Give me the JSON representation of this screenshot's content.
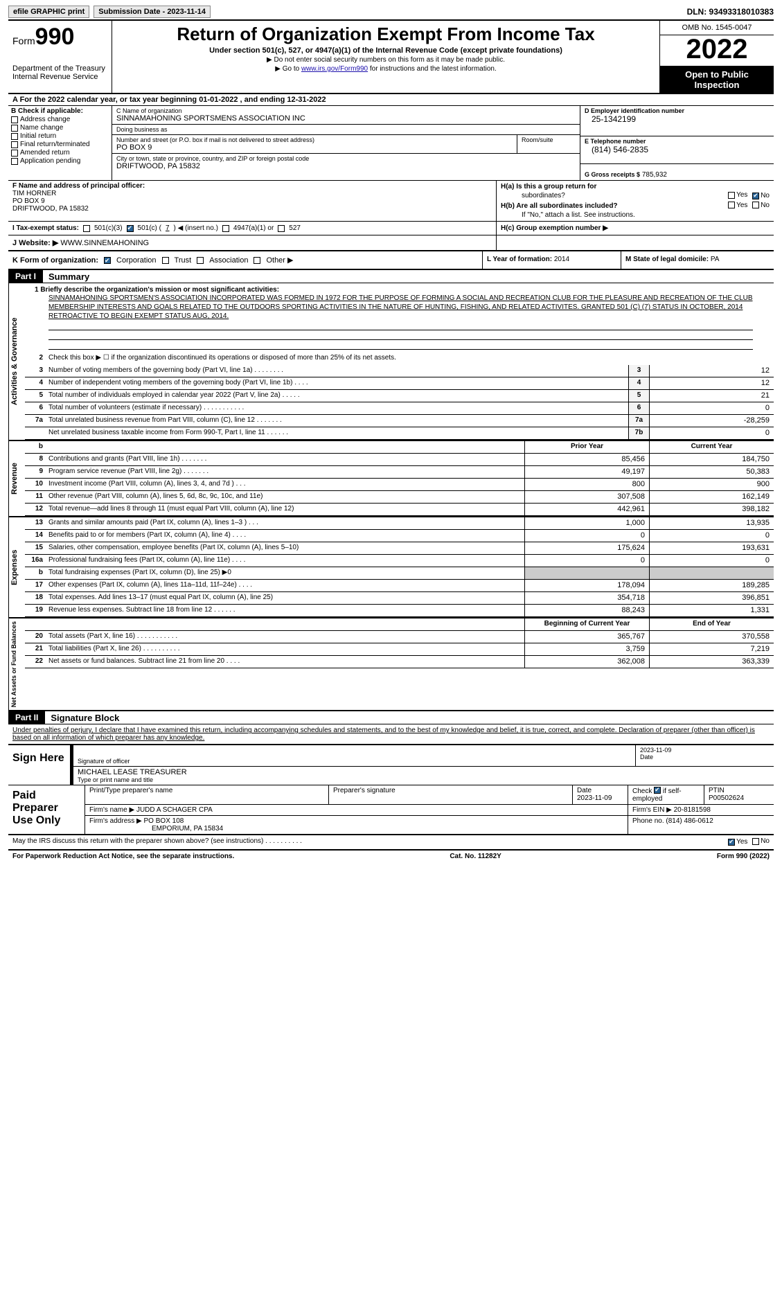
{
  "topbar": {
    "efile": "efile GRAPHIC print",
    "submission": "Submission Date - 2023-11-14",
    "dln": "DLN: 93493318010383"
  },
  "header": {
    "form_label": "Form",
    "form_num": "990",
    "dept": "Department of the Treasury",
    "irs": "Internal Revenue Service",
    "title": "Return of Organization Exempt From Income Tax",
    "sub": "Under section 501(c), 527, or 4947(a)(1) of the Internal Revenue Code (except private foundations)",
    "note1": "Do not enter social security numbers on this form as it may be made public.",
    "note2_pre": "Go to ",
    "note2_link": "www.irs.gov/Form990",
    "note2_post": " for instructions and the latest information.",
    "omb": "OMB No. 1545-0047",
    "year": "2022",
    "otp": "Open to Public Inspection"
  },
  "row_a": "A For the 2022 calendar year, or tax year beginning 01-01-2022   , and ending 12-31-2022",
  "box_b": {
    "label": "B Check if applicable:",
    "items": [
      "Address change",
      "Name change",
      "Initial return",
      "Final return/terminated",
      "Amended return",
      "Application pending"
    ]
  },
  "box_c": {
    "name_label": "C Name of organization",
    "name": "SINNAMAHONING SPORTSMENS ASSOCIATION INC",
    "dba_label": "Doing business as",
    "dba": "",
    "street_label": "Number and street (or P.O. box if mail is not delivered to street address)",
    "street": "PO BOX 9",
    "suite_label": "Room/suite",
    "city_label": "City or town, state or province, country, and ZIP or foreign postal code",
    "city": "DRIFTWOOD, PA  15832"
  },
  "box_d": {
    "ein_label": "D Employer identification number",
    "ein": "25-1342199",
    "tel_label": "E Telephone number",
    "tel": "(814) 546-2835",
    "gross_label": "G Gross receipts $",
    "gross": "785,932"
  },
  "box_f": {
    "label": "F  Name and address of principal officer:",
    "name": "TIM HORNER",
    "addr1": "PO BOX 9",
    "addr2": "DRIFTWOOD, PA  15832"
  },
  "box_h": {
    "ha": "H(a)  Is this a group return for",
    "ha2": "subordinates?",
    "hb": "H(b)  Are all subordinates included?",
    "hb2": "If \"No,\" attach a list. See instructions.",
    "hc": "H(c)  Group exemption number ▶"
  },
  "row_i": {
    "label": "I    Tax-exempt status:",
    "c3": "501(c)(3)",
    "c": "501(c) (",
    "cnum": "7",
    "cpost": ") ◀ (insert no.)",
    "a1": "4947(a)(1) or",
    "s527": "527"
  },
  "row_j": {
    "label": "J    Website: ▶",
    "val": "WWW.SINNEMAHONING"
  },
  "row_k": {
    "label": "K Form of organization:",
    "corp": "Corporation",
    "trust": "Trust",
    "assoc": "Association",
    "other": "Other ▶"
  },
  "row_l": {
    "label": "L Year of formation:",
    "val": "2014"
  },
  "row_m": {
    "label": "M State of legal domicile:",
    "val": "PA"
  },
  "part1": {
    "num": "Part I",
    "title": "Summary"
  },
  "p1": {
    "l1_label": "1   Briefly describe the organization's mission or most significant activities:",
    "l1_text": "SINNAMAHONING SPORTSMEN'S ASSOCIATION INCORPORATED WAS FORMED IN 1972 FOR THE PURPOSE OF FORMING A SOCIAL AND RECREATION CLUB FOR THE PLEASURE AND RECREATION OF THE CLUB MEMBERSHIP INTERESTS AND GOALS RELATED TO THE OUTDOORS SPORTING ACTIVITIES IN THE NATURE OF HUNTING, FISHING, AND RELATED ACTIVITES. GRANTED 501 (C) (7) STATUS IN OCTOBER, 2014 RETROACTIVE TO BEGIN EXEMPT STATUS AUG, 2014.",
    "l2": "Check this box ▶ ☐  if the organization discontinued its operations or disposed of more than 25% of its net assets.",
    "rows_ag": [
      {
        "n": "3",
        "t": "Number of voting members of the governing body (Part VI, line 1a)   .    .    .    .    .    .    .    .",
        "c": "3",
        "v": "12"
      },
      {
        "n": "4",
        "t": "Number of independent voting members of the governing body (Part VI, line 1b)    .    .    .    .",
        "c": "4",
        "v": "12"
      },
      {
        "n": "5",
        "t": "Total number of individuals employed in calendar year 2022 (Part V, line 2a)    .    .    .    .    .",
        "c": "5",
        "v": "21"
      },
      {
        "n": "6",
        "t": "Total number of volunteers (estimate if necessary)    .    .    .    .    .    .    .    .    .    .    .",
        "c": "6",
        "v": "0"
      },
      {
        "n": "7a",
        "t": "Total unrelated business revenue from Part VIII, column (C), line 12    .    .    .    .    .    .    .",
        "c": "7a",
        "v": "-28,259"
      },
      {
        "n": "",
        "t": "Net unrelated business taxable income from Form 990-T, Part I, line 11     .    .    .    .    .    .",
        "c": "7b",
        "v": "0"
      }
    ],
    "hdr_prior": "Prior Year",
    "hdr_curr": "Current Year",
    "rows_rev": [
      {
        "n": "8",
        "t": "Contributions and grants (Part VIII, line 1h)    .    .    .    .    .    .    .",
        "p": "85,456",
        "v": "184,750"
      },
      {
        "n": "9",
        "t": "Program service revenue (Part VIII, line 2g)    .    .    .    .    .    .    .",
        "p": "49,197",
        "v": "50,383"
      },
      {
        "n": "10",
        "t": "Investment income (Part VIII, column (A), lines 3, 4, and 7d )    .    .    .",
        "p": "800",
        "v": "900"
      },
      {
        "n": "11",
        "t": "Other revenue (Part VIII, column (A), lines 5, 6d, 8c, 9c, 10c, and 11e)",
        "p": "307,508",
        "v": "162,149"
      },
      {
        "n": "12",
        "t": "Total revenue—add lines 8 through 11 (must equal Part VIII, column (A), line 12)",
        "p": "442,961",
        "v": "398,182"
      }
    ],
    "rows_exp": [
      {
        "n": "13",
        "t": "Grants and similar amounts paid (Part IX, column (A), lines 1–3 )    .    .    .",
        "p": "1,000",
        "v": "13,935"
      },
      {
        "n": "14",
        "t": "Benefits paid to or for members (Part IX, column (A), line 4)    .    .    .    .",
        "p": "0",
        "v": "0"
      },
      {
        "n": "15",
        "t": "Salaries, other compensation, employee benefits (Part IX, column (A), lines 5–10)",
        "p": "175,624",
        "v": "193,631"
      },
      {
        "n": "16a",
        "t": "Professional fundraising fees (Part IX, column (A), line 11e)    .    .    .    .",
        "p": "0",
        "v": "0"
      },
      {
        "n": "b",
        "t": "Total fundraising expenses (Part IX, column (D), line 25) ▶0",
        "p": "",
        "v": "",
        "grey": true
      },
      {
        "n": "17",
        "t": "Other expenses (Part IX, column (A), lines 11a–11d, 11f–24e)    .    .    .    .",
        "p": "178,094",
        "v": "189,285"
      },
      {
        "n": "18",
        "t": "Total expenses. Add lines 13–17 (must equal Part IX, column (A), line 25)",
        "p": "354,718",
        "v": "396,851"
      },
      {
        "n": "19",
        "t": "Revenue less expenses. Subtract line 18 from line 12   .    .    .    .    .    .",
        "p": "88,243",
        "v": "1,331"
      }
    ],
    "hdr_boy": "Beginning of Current Year",
    "hdr_eoy": "End of Year",
    "rows_na": [
      {
        "n": "20",
        "t": "Total assets (Part X, line 16)    .    .    .    .    .    .    .    .    .    .    .",
        "p": "365,767",
        "v": "370,558"
      },
      {
        "n": "21",
        "t": "Total liabilities (Part X, line 26)    .    .    .    .    .    .    .    .    .    .",
        "p": "3,759",
        "v": "7,219"
      },
      {
        "n": "22",
        "t": "Net assets or fund balances. Subtract line 21 from line 20    .    .    .    .",
        "p": "362,008",
        "v": "363,339"
      }
    ]
  },
  "tabs": {
    "ag": "Activities & Governance",
    "rev": "Revenue",
    "exp": "Expenses",
    "na": "Net Assets or Fund Balances"
  },
  "part2": {
    "num": "Part II",
    "title": "Signature Block"
  },
  "sig": {
    "decl": "Under penalties of perjury, I declare that I have examined this return, including accompanying schedules and statements, and to the best of my knowledge and belief, it is true, correct, and complete. Declaration of preparer (other than officer) is based on all information of which preparer has any knowledge.",
    "sign_here": "Sign Here",
    "sig_label": "Signature of officer",
    "date_label": "Date",
    "date": "2023-11-09",
    "name": "MICHAEL LEASE TREASURER",
    "name_label": "Type or print name and title"
  },
  "prep": {
    "label": "Paid Preparer Use Only",
    "h1": "Print/Type preparer's name",
    "h2": "Preparer's signature",
    "h3": "Date",
    "h3v": "2023-11-09",
    "h4": "Check ☑ if self-employed",
    "h5": "PTIN",
    "h5v": "P00502624",
    "firm_label": "Firm's name    ▶",
    "firm": "JUDD A SCHAGER CPA",
    "ein_label": "Firm's EIN ▶",
    "ein": "20-8181598",
    "addr_label": "Firm's address ▶",
    "addr1": "PO BOX 108",
    "addr2": "EMPORIUM, PA  15834",
    "phone_label": "Phone no.",
    "phone": "(814) 486-0612"
  },
  "discuss": "May the IRS discuss this return with the preparer shown above? (see instructions)    .    .    .    .    .    .    .    .    .    .",
  "foot": {
    "l": "For Paperwork Reduction Act Notice, see the separate instructions.",
    "c": "Cat. No. 11282Y",
    "r": "Form 990 (2022)"
  },
  "yes": "Yes",
  "no": "No"
}
